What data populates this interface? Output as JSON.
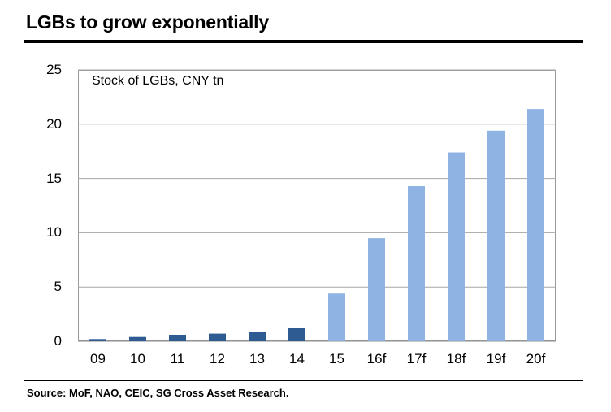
{
  "title": "LGBs to grow exponentially",
  "source": "Source:  MoF, NAO, CEIC, SG Cross Asset Research.",
  "chart_data": {
    "type": "bar",
    "title": "LGBs to grow exponentially",
    "ylabel": "Stock of LGBs, CNY tn",
    "xlabel": "",
    "ylim": [
      0,
      25
    ],
    "yticks": [
      "0",
      "5",
      "10",
      "15",
      "20",
      "25"
    ],
    "categories": [
      "09",
      "10",
      "11",
      "12",
      "13",
      "14",
      "15",
      "16f",
      "17f",
      "18f",
      "19f",
      "20f"
    ],
    "values": [
      0.2,
      0.4,
      0.6,
      0.7,
      0.9,
      1.2,
      4.4,
      9.5,
      14.3,
      17.4,
      19.4,
      21.4
    ],
    "bar_colors": [
      "#2e5b91",
      "#2e5b91",
      "#2e5b91",
      "#2e5b91",
      "#2e5b91",
      "#2e5b91",
      "#8fb4e3",
      "#8fb4e3",
      "#8fb4e3",
      "#8fb4e3",
      "#8fb4e3",
      "#8fb4e3"
    ],
    "grid": true
  }
}
